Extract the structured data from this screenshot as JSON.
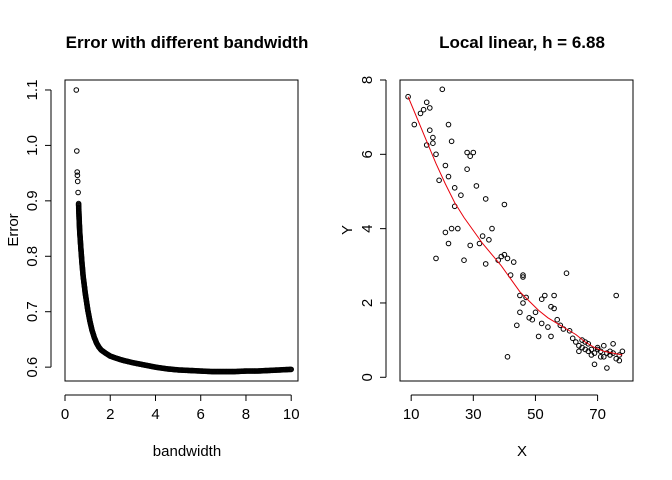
{
  "chart_data": [
    {
      "type": "scatter",
      "title": "Error with different bandwidth",
      "xlabel": "bandwidth",
      "ylabel": "Error",
      "xlim": [
        0,
        10.3
      ],
      "ylim": [
        0.575,
        1.118
      ],
      "xticks": [
        0,
        2,
        4,
        6,
        8,
        10
      ],
      "yticks": [
        0.6,
        0.7,
        0.8,
        0.9,
        1.0,
        1.1
      ],
      "ytick_labels": [
        "0.6",
        "0.7",
        "0.8",
        "0.9",
        "1.0",
        "1.1"
      ],
      "grid": false,
      "series": [
        {
          "x": [
            0.5,
            0.52,
            0.54,
            0.55,
            0.56,
            0.58,
            0.6,
            0.62,
            0.65,
            0.7,
            0.75,
            0.8,
            0.9,
            1.0,
            1.1,
            1.2,
            1.3,
            1.4,
            1.5,
            1.6,
            1.8,
            2.0,
            2.2,
            2.5,
            2.8,
            3.0,
            3.5,
            4.0,
            4.5,
            5.0,
            5.5,
            6.0,
            6.5,
            7.0,
            7.5,
            8.0,
            8.5,
            9.0,
            9.5,
            10.0
          ],
          "y": [
            1.1,
            0.99,
            0.952,
            0.946,
            0.935,
            0.915,
            0.895,
            0.872,
            0.845,
            0.815,
            0.788,
            0.765,
            0.732,
            0.705,
            0.683,
            0.666,
            0.653,
            0.643,
            0.636,
            0.631,
            0.625,
            0.62,
            0.617,
            0.613,
            0.61,
            0.608,
            0.604,
            0.6,
            0.597,
            0.595,
            0.594,
            0.593,
            0.592,
            0.592,
            0.592,
            0.593,
            0.593,
            0.594,
            0.595,
            0.596
          ]
        }
      ]
    },
    {
      "type": "scatter",
      "title": "Local linear, h =  6.88",
      "xlabel": "X",
      "ylabel": "Y",
      "xlim": [
        6.4,
        81.4
      ],
      "ylim": [
        -0.1,
        8.0
      ],
      "xticks": [
        10,
        30,
        50,
        70
      ],
      "yticks": [
        0,
        2,
        4,
        6,
        8
      ],
      "grid": false,
      "series": [
        {
          "x": [
            9,
            11,
            13,
            14,
            15,
            15,
            16,
            16,
            17,
            17,
            18,
            18,
            19,
            20,
            21,
            21,
            22,
            22,
            22,
            23,
            23,
            24,
            24,
            25,
            26,
            27,
            28,
            28,
            29,
            29,
            30,
            31,
            32,
            33,
            34,
            34,
            35,
            36,
            38,
            39,
            40,
            40,
            41,
            41,
            42,
            43,
            44,
            45,
            45,
            46,
            46,
            46,
            47,
            48,
            49,
            50,
            51,
            52,
            52,
            53,
            54,
            55,
            55,
            56,
            56,
            57,
            58,
            59,
            60,
            61,
            62,
            63,
            64,
            64,
            65,
            65,
            66,
            66,
            67,
            67,
            68,
            68,
            69,
            69,
            70,
            70,
            71,
            71,
            72,
            72,
            73,
            73,
            74,
            74,
            75,
            75,
            76,
            76,
            77,
            77,
            78
          ],
          "y": [
            7.55,
            6.8,
            7.1,
            7.2,
            7.4,
            6.25,
            6.65,
            7.25,
            6.45,
            6.3,
            6.0,
            3.2,
            5.3,
            7.75,
            3.9,
            5.7,
            3.6,
            6.8,
            5.4,
            4.0,
            6.35,
            4.6,
            5.1,
            4.0,
            4.9,
            3.15,
            5.6,
            6.05,
            3.55,
            5.95,
            6.05,
            5.15,
            3.6,
            3.8,
            3.05,
            4.8,
            3.7,
            4.0,
            3.15,
            3.25,
            3.3,
            4.65,
            3.2,
            0.55,
            2.75,
            3.1,
            1.4,
            2.2,
            1.75,
            2.0,
            2.75,
            2.7,
            2.15,
            1.6,
            1.55,
            1.75,
            1.1,
            1.45,
            2.1,
            2.2,
            1.35,
            1.9,
            1.1,
            1.85,
            2.2,
            1.55,
            1.4,
            1.3,
            2.8,
            1.25,
            1.05,
            0.95,
            0.85,
            0.7,
            1.0,
            0.8,
            0.75,
            0.95,
            0.9,
            0.7,
            0.75,
            0.6,
            0.65,
            0.35,
            0.8,
            0.75,
            0.55,
            0.7,
            0.55,
            0.85,
            0.25,
            0.65,
            0.6,
            0.7,
            0.65,
            0.9,
            0.5,
            2.2,
            0.6,
            0.45,
            0.7
          ]
        },
        {
          "type": "line",
          "color": "#e8000b",
          "x": [
            9,
            12,
            15,
            18,
            21,
            24,
            27,
            30,
            33,
            36,
            39,
            42,
            45,
            48,
            51,
            54,
            57,
            60,
            63,
            66,
            69,
            72,
            75,
            78
          ],
          "y": [
            7.55,
            6.95,
            6.35,
            5.75,
            5.2,
            4.7,
            4.3,
            3.95,
            3.6,
            3.3,
            3.0,
            2.65,
            2.3,
            2.05,
            1.8,
            1.6,
            1.45,
            1.3,
            1.15,
            0.95,
            0.8,
            0.7,
            0.65,
            0.6
          ]
        }
      ]
    }
  ]
}
